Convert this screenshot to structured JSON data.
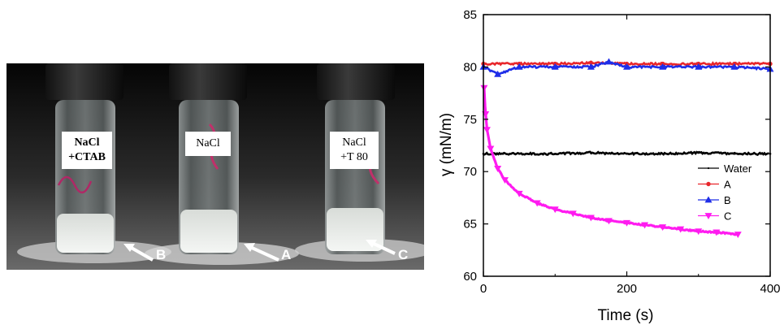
{
  "photo": {
    "vials": [
      {
        "line1": "NaCl",
        "line2": "+CTAB",
        "bold": true
      },
      {
        "line1": "NaCl",
        "line2": "",
        "bold": false
      },
      {
        "line1": "NaCl",
        "line2": "+T 80",
        "bold": false
      }
    ],
    "arrow_labels": [
      "B",
      "A",
      "C"
    ]
  },
  "chart_data": {
    "type": "scatter",
    "xlabel": "Time (s)",
    "ylabel": "γ (mN/m)",
    "xlim": [
      0,
      400
    ],
    "ylim": [
      60,
      85
    ],
    "xticks": [
      0,
      200,
      400
    ],
    "yticks": [
      60,
      65,
      70,
      75,
      80,
      85
    ],
    "legend_position": "right",
    "series": [
      {
        "name": "Water",
        "color": "#000000",
        "marker": "dot",
        "x": [
          0,
          50,
          100,
          150,
          200,
          250,
          300,
          350,
          400
        ],
        "y": [
          71.7,
          71.7,
          71.7,
          71.8,
          71.7,
          71.7,
          71.8,
          71.7,
          71.7
        ]
      },
      {
        "name": "A",
        "color": "#e8262b",
        "marker": "circle",
        "x": [
          0,
          50,
          100,
          150,
          200,
          250,
          300,
          350,
          400
        ],
        "y": [
          80.3,
          80.3,
          80.3,
          80.4,
          80.3,
          80.3,
          80.3,
          80.3,
          80.3
        ]
      },
      {
        "name": "B",
        "color": "#1f2ee8",
        "marker": "triangle-up",
        "x": [
          0,
          20,
          50,
          100,
          150,
          175,
          200,
          250,
          300,
          350,
          400
        ],
        "y": [
          80.0,
          79.3,
          80.0,
          80.0,
          80.0,
          80.5,
          80.0,
          80.0,
          80.0,
          80.0,
          79.8
        ]
      },
      {
        "name": "C",
        "color": "#ff1bf0",
        "marker": "triangle-down",
        "x": [
          1,
          3,
          5,
          10,
          20,
          30,
          50,
          75,
          100,
          125,
          150,
          175,
          200,
          225,
          250,
          275,
          300,
          325,
          355
        ],
        "y": [
          78.0,
          75.5,
          74.0,
          72.2,
          70.3,
          69.2,
          67.9,
          67.0,
          66.4,
          66.0,
          65.6,
          65.3,
          65.1,
          64.9,
          64.7,
          64.5,
          64.3,
          64.2,
          64.0
        ]
      }
    ]
  }
}
